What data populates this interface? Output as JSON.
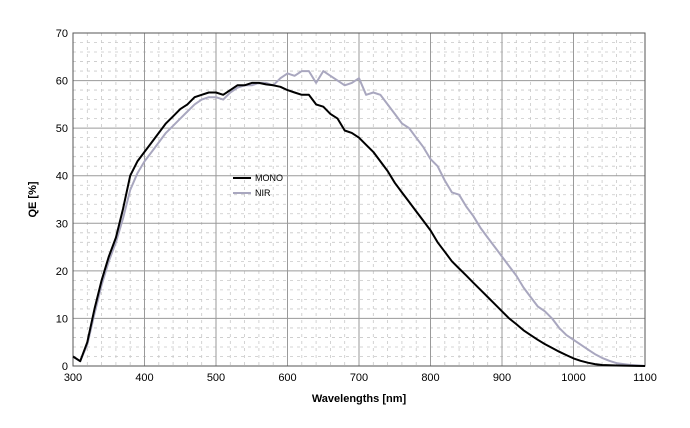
{
  "chart_data": {
    "type": "line",
    "title": "",
    "xlabel": "Wavelengths [nm]",
    "ylabel": "QE [%]",
    "xlim": [
      300,
      1100
    ],
    "ylim": [
      0,
      70
    ],
    "x_ticks": [
      "300",
      "400",
      "500",
      "600",
      "700",
      "800",
      "900",
      "1000",
      "1100"
    ],
    "y_ticks": [
      "0",
      "10",
      "20",
      "30",
      "40",
      "50",
      "60",
      "70"
    ],
    "grid": true,
    "minor_grid": true,
    "legend_position": "center-left",
    "series": [
      {
        "name": "MONO",
        "color": "#000000",
        "points": [
          [
            300,
            2
          ],
          [
            310,
            1
          ],
          [
            320,
            5
          ],
          [
            330,
            12
          ],
          [
            340,
            18
          ],
          [
            350,
            23
          ],
          [
            360,
            27
          ],
          [
            370,
            33
          ],
          [
            380,
            40
          ],
          [
            390,
            43
          ],
          [
            400,
            45
          ],
          [
            410,
            47
          ],
          [
            420,
            49
          ],
          [
            430,
            51
          ],
          [
            440,
            52.5
          ],
          [
            450,
            54
          ],
          [
            460,
            55
          ],
          [
            470,
            56.5
          ],
          [
            480,
            57
          ],
          [
            490,
            57.5
          ],
          [
            500,
            57.5
          ],
          [
            510,
            57
          ],
          [
            520,
            58
          ],
          [
            530,
            59
          ],
          [
            540,
            59
          ],
          [
            550,
            59.5
          ],
          [
            560,
            59.5
          ],
          [
            570,
            59.2
          ],
          [
            580,
            59
          ],
          [
            590,
            58.7
          ],
          [
            600,
            58
          ],
          [
            610,
            57.5
          ],
          [
            620,
            57
          ],
          [
            630,
            57
          ],
          [
            640,
            55
          ],
          [
            650,
            54.5
          ],
          [
            660,
            53
          ],
          [
            670,
            52
          ],
          [
            680,
            49.5
          ],
          [
            690,
            49
          ],
          [
            700,
            48
          ],
          [
            710,
            46.5
          ],
          [
            720,
            45
          ],
          [
            730,
            43
          ],
          [
            740,
            41
          ],
          [
            750,
            38.5
          ],
          [
            760,
            36.5
          ],
          [
            770,
            34.5
          ],
          [
            780,
            32.5
          ],
          [
            790,
            30.5
          ],
          [
            800,
            28.5
          ],
          [
            810,
            26
          ],
          [
            820,
            24
          ],
          [
            830,
            22
          ],
          [
            840,
            20.5
          ],
          [
            850,
            19
          ],
          [
            860,
            17.5
          ],
          [
            870,
            16
          ],
          [
            880,
            14.5
          ],
          [
            890,
            13
          ],
          [
            900,
            11.5
          ],
          [
            910,
            10
          ],
          [
            920,
            8.8
          ],
          [
            930,
            7.5
          ],
          [
            940,
            6.5
          ],
          [
            950,
            5.5
          ],
          [
            960,
            4.6
          ],
          [
            970,
            3.8
          ],
          [
            980,
            3
          ],
          [
            990,
            2.3
          ],
          [
            1000,
            1.6
          ],
          [
            1010,
            1.1
          ],
          [
            1020,
            0.7
          ],
          [
            1030,
            0.4
          ],
          [
            1040,
            0.2
          ],
          [
            1060,
            0.1
          ],
          [
            1100,
            0
          ]
        ]
      },
      {
        "name": "NIR",
        "color": "#a9a7bf",
        "points": [
          [
            300,
            2
          ],
          [
            310,
            1
          ],
          [
            320,
            4.5
          ],
          [
            330,
            11
          ],
          [
            340,
            17
          ],
          [
            350,
            22
          ],
          [
            360,
            26
          ],
          [
            370,
            31
          ],
          [
            380,
            37
          ],
          [
            390,
            40.5
          ],
          [
            400,
            43
          ],
          [
            410,
            45
          ],
          [
            420,
            47
          ],
          [
            430,
            49
          ],
          [
            440,
            50.5
          ],
          [
            450,
            52
          ],
          [
            460,
            53.5
          ],
          [
            470,
            55
          ],
          [
            480,
            56
          ],
          [
            490,
            56.5
          ],
          [
            500,
            56.5
          ],
          [
            510,
            56
          ],
          [
            520,
            57.5
          ],
          [
            530,
            58.5
          ],
          [
            540,
            59
          ],
          [
            550,
            59
          ],
          [
            560,
            59.5
          ],
          [
            570,
            59.5
          ],
          [
            580,
            59
          ],
          [
            590,
            60.5
          ],
          [
            600,
            61.5
          ],
          [
            610,
            61
          ],
          [
            620,
            62
          ],
          [
            630,
            62
          ],
          [
            640,
            59.5
          ],
          [
            650,
            62
          ],
          [
            660,
            61
          ],
          [
            670,
            60
          ],
          [
            680,
            59
          ],
          [
            690,
            59.5
          ],
          [
            700,
            60.5
          ],
          [
            710,
            57
          ],
          [
            720,
            57.5
          ],
          [
            730,
            57
          ],
          [
            740,
            55
          ],
          [
            750,
            53
          ],
          [
            760,
            51
          ],
          [
            770,
            50
          ],
          [
            780,
            48
          ],
          [
            790,
            46
          ],
          [
            800,
            43.5
          ],
          [
            810,
            42
          ],
          [
            820,
            39
          ],
          [
            830,
            36.5
          ],
          [
            840,
            36
          ],
          [
            850,
            33.5
          ],
          [
            860,
            31.5
          ],
          [
            870,
            29
          ],
          [
            880,
            27
          ],
          [
            890,
            25
          ],
          [
            900,
            23
          ],
          [
            910,
            21
          ],
          [
            920,
            19
          ],
          [
            930,
            16.5
          ],
          [
            940,
            14.5
          ],
          [
            950,
            12.5
          ],
          [
            960,
            11.5
          ],
          [
            970,
            10
          ],
          [
            980,
            8
          ],
          [
            990,
            6.5
          ],
          [
            1000,
            5.5
          ],
          [
            1010,
            4.5
          ],
          [
            1020,
            3.5
          ],
          [
            1030,
            2.5
          ],
          [
            1040,
            1.7
          ],
          [
            1050,
            1.1
          ],
          [
            1060,
            0.6
          ],
          [
            1070,
            0.4
          ],
          [
            1080,
            0.2
          ],
          [
            1100,
            0
          ]
        ]
      }
    ]
  }
}
